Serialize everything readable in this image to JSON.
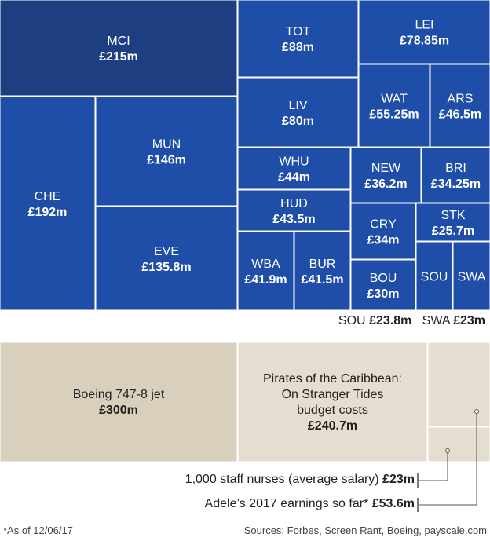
{
  "chart_data": {
    "type": "treemap",
    "unit": "£m",
    "colors": {
      "club_fill": "#1f4ea8",
      "club_fill_dark": "#1d3f82",
      "comparison_fill_dark": "#d8cfbd",
      "comparison_fill_light": "#e4ddd0",
      "border": "#ffffff",
      "leader": "#555555"
    },
    "clubs": [
      {
        "name": "MCI",
        "label": "£215m",
        "value": 215
      },
      {
        "name": "CHE",
        "label": "£192m",
        "value": 192
      },
      {
        "name": "MUN",
        "label": "£146m",
        "value": 146
      },
      {
        "name": "EVE",
        "label": "£135.8m",
        "value": 135.8
      },
      {
        "name": "TOT",
        "label": "£88m",
        "value": 88
      },
      {
        "name": "LIV",
        "label": "£80m",
        "value": 80
      },
      {
        "name": "LEI",
        "label": "£78.85m",
        "value": 78.85
      },
      {
        "name": "WAT",
        "label": "£55.25m",
        "value": 55.25
      },
      {
        "name": "ARS",
        "label": "£46.5m",
        "value": 46.5
      },
      {
        "name": "WHU",
        "label": "£44m",
        "value": 44
      },
      {
        "name": "HUD",
        "label": "£43.5m",
        "value": 43.5
      },
      {
        "name": "WBA",
        "label": "£41.9m",
        "value": 41.9
      },
      {
        "name": "BUR",
        "label": "£41.5m",
        "value": 41.5
      },
      {
        "name": "NEW",
        "label": "£36.2m",
        "value": 36.2
      },
      {
        "name": "BRI",
        "label": "£34.25m",
        "value": 34.25
      },
      {
        "name": "CRY",
        "label": "£34m",
        "value": 34
      },
      {
        "name": "BOU",
        "label": "£30m",
        "value": 30
      },
      {
        "name": "STK",
        "label": "£25.7m",
        "value": 25.7
      },
      {
        "name": "SOU",
        "label": "£23.8m",
        "value": 23.8
      },
      {
        "name": "SWA",
        "label": "£23m",
        "value": 23
      }
    ],
    "comparisons": [
      {
        "lines": [
          "Boeing 747-8 jet"
        ],
        "label": "£300m",
        "value": 300
      },
      {
        "lines": [
          "Pirates of the Caribbean:",
          "On Stranger Tides",
          "budget costs"
        ],
        "label": "£240.7m",
        "value": 240.7
      },
      {
        "lines": [],
        "label": "",
        "value": 53.6
      },
      {
        "lines": [],
        "label": "",
        "value": 23
      }
    ]
  },
  "small_clubs_key": [
    {
      "name": "SOU",
      "label": "£23.8m"
    },
    {
      "name": "SWA",
      "label": "£23m"
    }
  ],
  "annotations": [
    {
      "text": "1,000 staff nurses (average salary)",
      "label": "£23m"
    },
    {
      "text": "Adele’s 2017 earnings so far*",
      "label": "£53.6m"
    }
  ],
  "footnote": "*As of 12/06/17",
  "sources": "Sources: Forbes, Screen Rant, Boeing, payscale.com"
}
